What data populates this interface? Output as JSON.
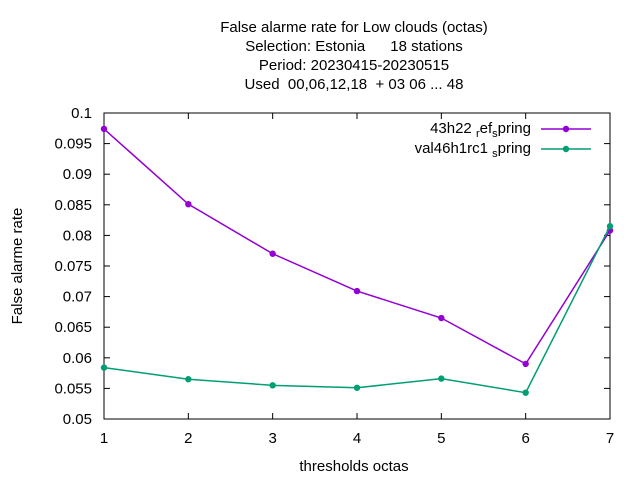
{
  "chart_data": {
    "type": "line",
    "title_lines": [
      "False alarme rate  for Low clouds (octas)",
      "Selection: Estonia      18 stations",
      "Period: 20230415-20230515",
      "Used  00,06,12,18  + 03 06 ... 48"
    ],
    "xlabel": "thresholds octas",
    "ylabel": "False alarme rate",
    "xlim": [
      1,
      7
    ],
    "ylim": [
      0.05,
      0.1
    ],
    "x_ticks": [
      "1",
      "2",
      "3",
      "4",
      "5",
      "6",
      "7"
    ],
    "y_ticks": [
      "0.05",
      "0.055",
      "0.06",
      "0.065",
      "0.07",
      "0.075",
      "0.08",
      "0.085",
      "0.09",
      "0.095",
      "0.1"
    ],
    "grid": false,
    "legend_position": "top-right",
    "x": [
      1,
      2,
      3,
      4,
      5,
      6,
      7
    ],
    "series": [
      {
        "name": "43h22_ref_spring",
        "legend_parts": [
          "43h22 ",
          "r",
          "ef",
          "s",
          "pring"
        ],
        "color": "#9400d3",
        "values": [
          0.0974,
          0.0851,
          0.077,
          0.0709,
          0.0665,
          0.059,
          0.0808
        ]
      },
      {
        "name": "val46h1rc1_spring",
        "legend_parts": [
          "val46h1rc1 ",
          "s",
          "pring"
        ],
        "color": "#009e73",
        "values": [
          0.0584,
          0.0565,
          0.0555,
          0.0551,
          0.0566,
          0.0543,
          0.0815
        ]
      }
    ]
  }
}
